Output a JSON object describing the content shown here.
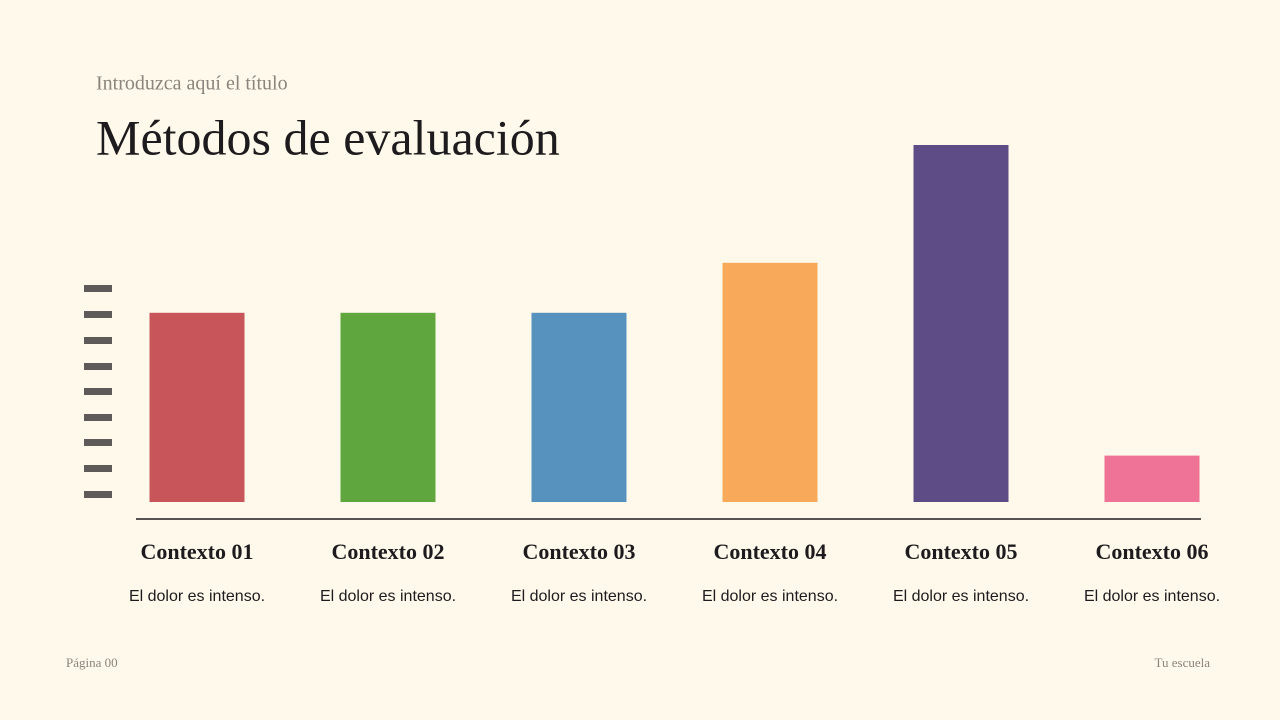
{
  "subtitle": "Introduzca aquí el título",
  "chart_data": {
    "type": "bar",
    "title": "Métodos de evaluación",
    "categories": [
      "Contexto 01",
      "Contexto 02",
      "Contexto 03",
      "Contexto 04",
      "Contexto 05",
      "Contexto 06"
    ],
    "descriptions": [
      "El dolor es intenso.",
      "El dolor es intenso.",
      "El dolor es intenso.",
      "El dolor es intenso.",
      "El dolor es intenso.",
      "El dolor es intenso."
    ],
    "values": [
      53,
      53,
      53,
      67,
      100,
      13
    ],
    "colors": [
      "#c8555a",
      "#5fa63f",
      "#5791be",
      "#f8a95a",
      "#5d4c85",
      "#ee7396"
    ],
    "ylim": [
      0,
      100
    ]
  },
  "footer": {
    "left": "Página 00",
    "right": "Tu escuela"
  }
}
